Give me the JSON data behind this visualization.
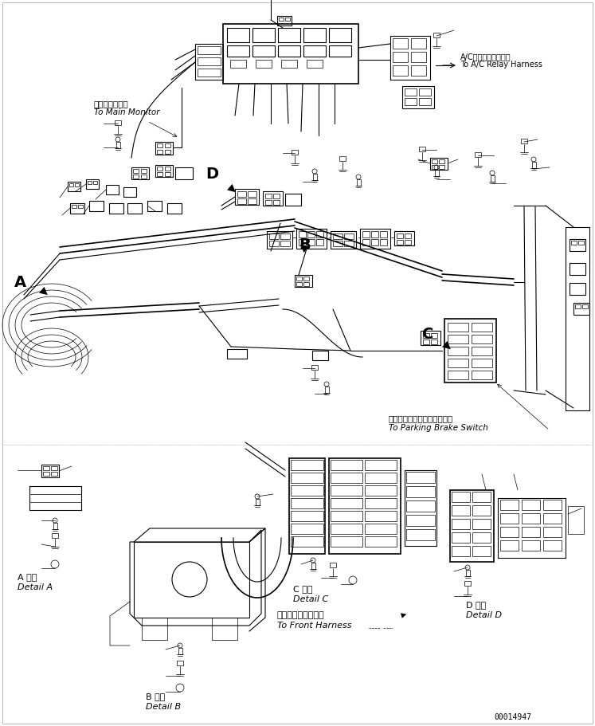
{
  "bg_color": "#ffffff",
  "line_color": "#000000",
  "fig_width": 7.47,
  "fig_height": 9.11,
  "dpi": 100,
  "part_number": "00014947",
  "labels": {
    "main_monitor_jp": "メインモニタへ",
    "main_monitor_en": "To Main Monitor",
    "ac_relay_jp": "A/Cリレーハーネスへ",
    "ac_relay_en": "To A/C Relay Harness",
    "parking_brake_jp": "パーキングブレーキスイチへ",
    "parking_brake_en": "To Parking Brake Switch",
    "front_harness_jp": "フロントハーネスへ",
    "front_harness_en": "To Front Harness",
    "detail_a_jp": "A 詳細",
    "detail_a_en": "Detail A",
    "detail_b_jp": "B 詳細",
    "detail_b_en": "Detail B",
    "detail_c_jp": "C 詳細",
    "detail_c_en": "Detail C",
    "detail_d_jp": "D 詳細",
    "detail_d_en": "Detail D",
    "label_a": "A",
    "label_b": "B",
    "label_c": "C",
    "label_d": "D"
  }
}
